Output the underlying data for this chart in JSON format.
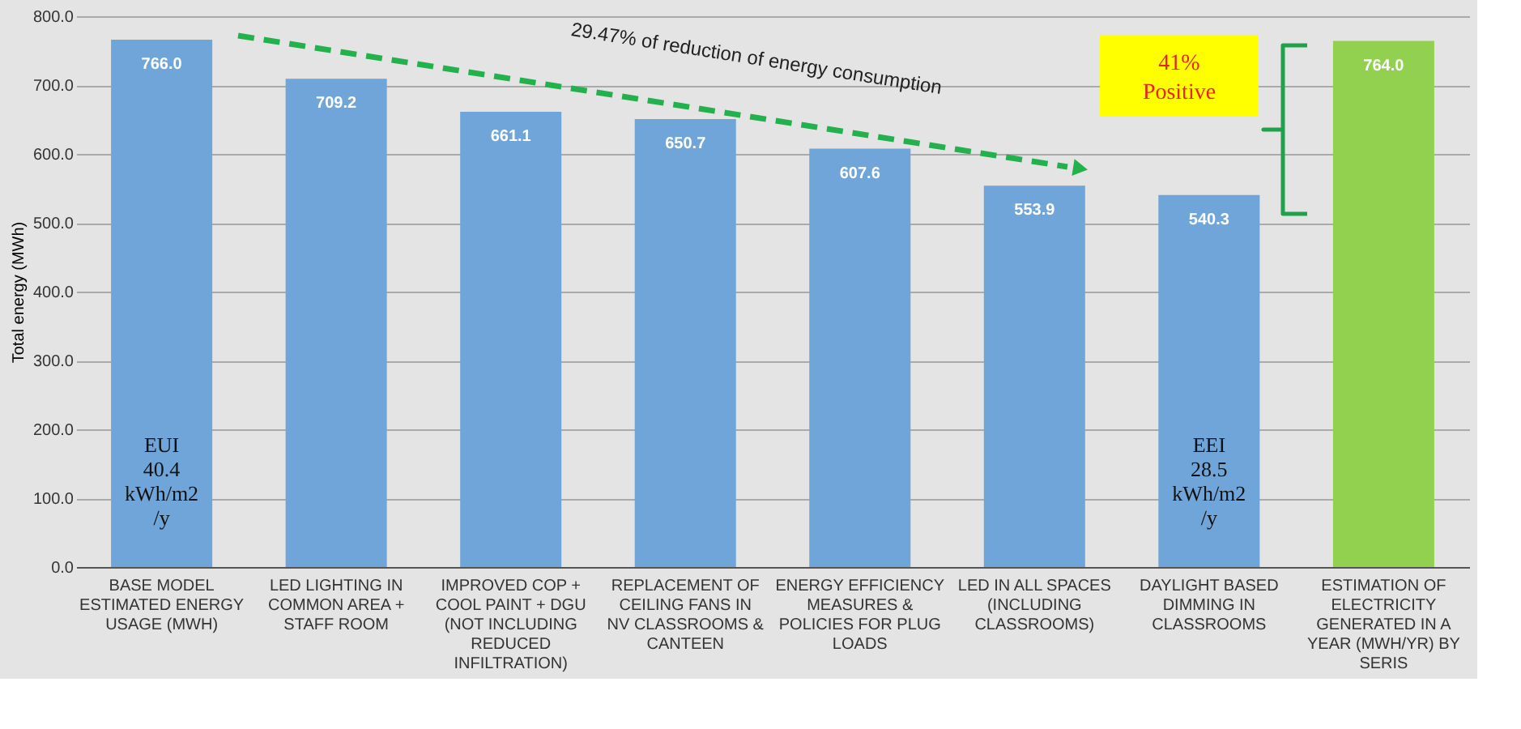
{
  "chart_data": {
    "type": "bar",
    "categories": [
      "BASE MODEL ESTIMATED ENERGY USAGE (MWH)",
      "LED LIGHTING IN COMMON AREA + STAFF ROOM",
      "IMPROVED COP + COOL PAINT + DGU (NOT INCLUDING REDUCED INFILTRATION)",
      "REPLACEMENT OF CEILING FANS IN NV CLASSROOMS & CANTEEN",
      "ENERGY EFFICIENCY MEASURES & POLICIES FOR PLUG LOADS",
      "LED IN ALL SPACES (INCLUDING CLASSROOMS)",
      "DAYLIGHT BASED DIMMING IN CLASSROOMS",
      "ESTIMATION OF ELECTRICITY GENERATED IN A YEAR (MWH/YR) BY SERIS"
    ],
    "values": [
      766.0,
      709.2,
      661.1,
      650.7,
      607.6,
      553.9,
      540.3,
      764.0
    ],
    "value_labels": [
      "766.0",
      "709.2",
      "661.1",
      "650.7",
      "607.6",
      "553.9",
      "540.3",
      "764.0"
    ],
    "colors": [
      "#6fa5d8",
      "#6fa5d8",
      "#6fa5d8",
      "#6fa5d8",
      "#6fa5d8",
      "#6fa5d8",
      "#6fa5d8",
      "#92d050"
    ],
    "ylabel": "Total energy (MWh)",
    "ylim": [
      0,
      800
    ],
    "yticks": [
      {
        "value": 0,
        "label": "0.0"
      },
      {
        "value": 100,
        "label": "100.0"
      },
      {
        "value": 200,
        "label": "200.0"
      },
      {
        "value": 300,
        "label": "300.0"
      },
      {
        "value": 400,
        "label": "400.0"
      },
      {
        "value": 500,
        "label": "500.0"
      },
      {
        "value": 600,
        "label": "600.0"
      },
      {
        "value": 700,
        "label": "700.0"
      },
      {
        "value": 800,
        "label": "800.0"
      }
    ],
    "grid": "y",
    "annotations": [
      "29.47% of reduction of energy consumption",
      "41% Positive",
      "EUI 40.4 kWh/m2 /y",
      "EEI 28.5 kWh/m2 /y"
    ]
  }
}
